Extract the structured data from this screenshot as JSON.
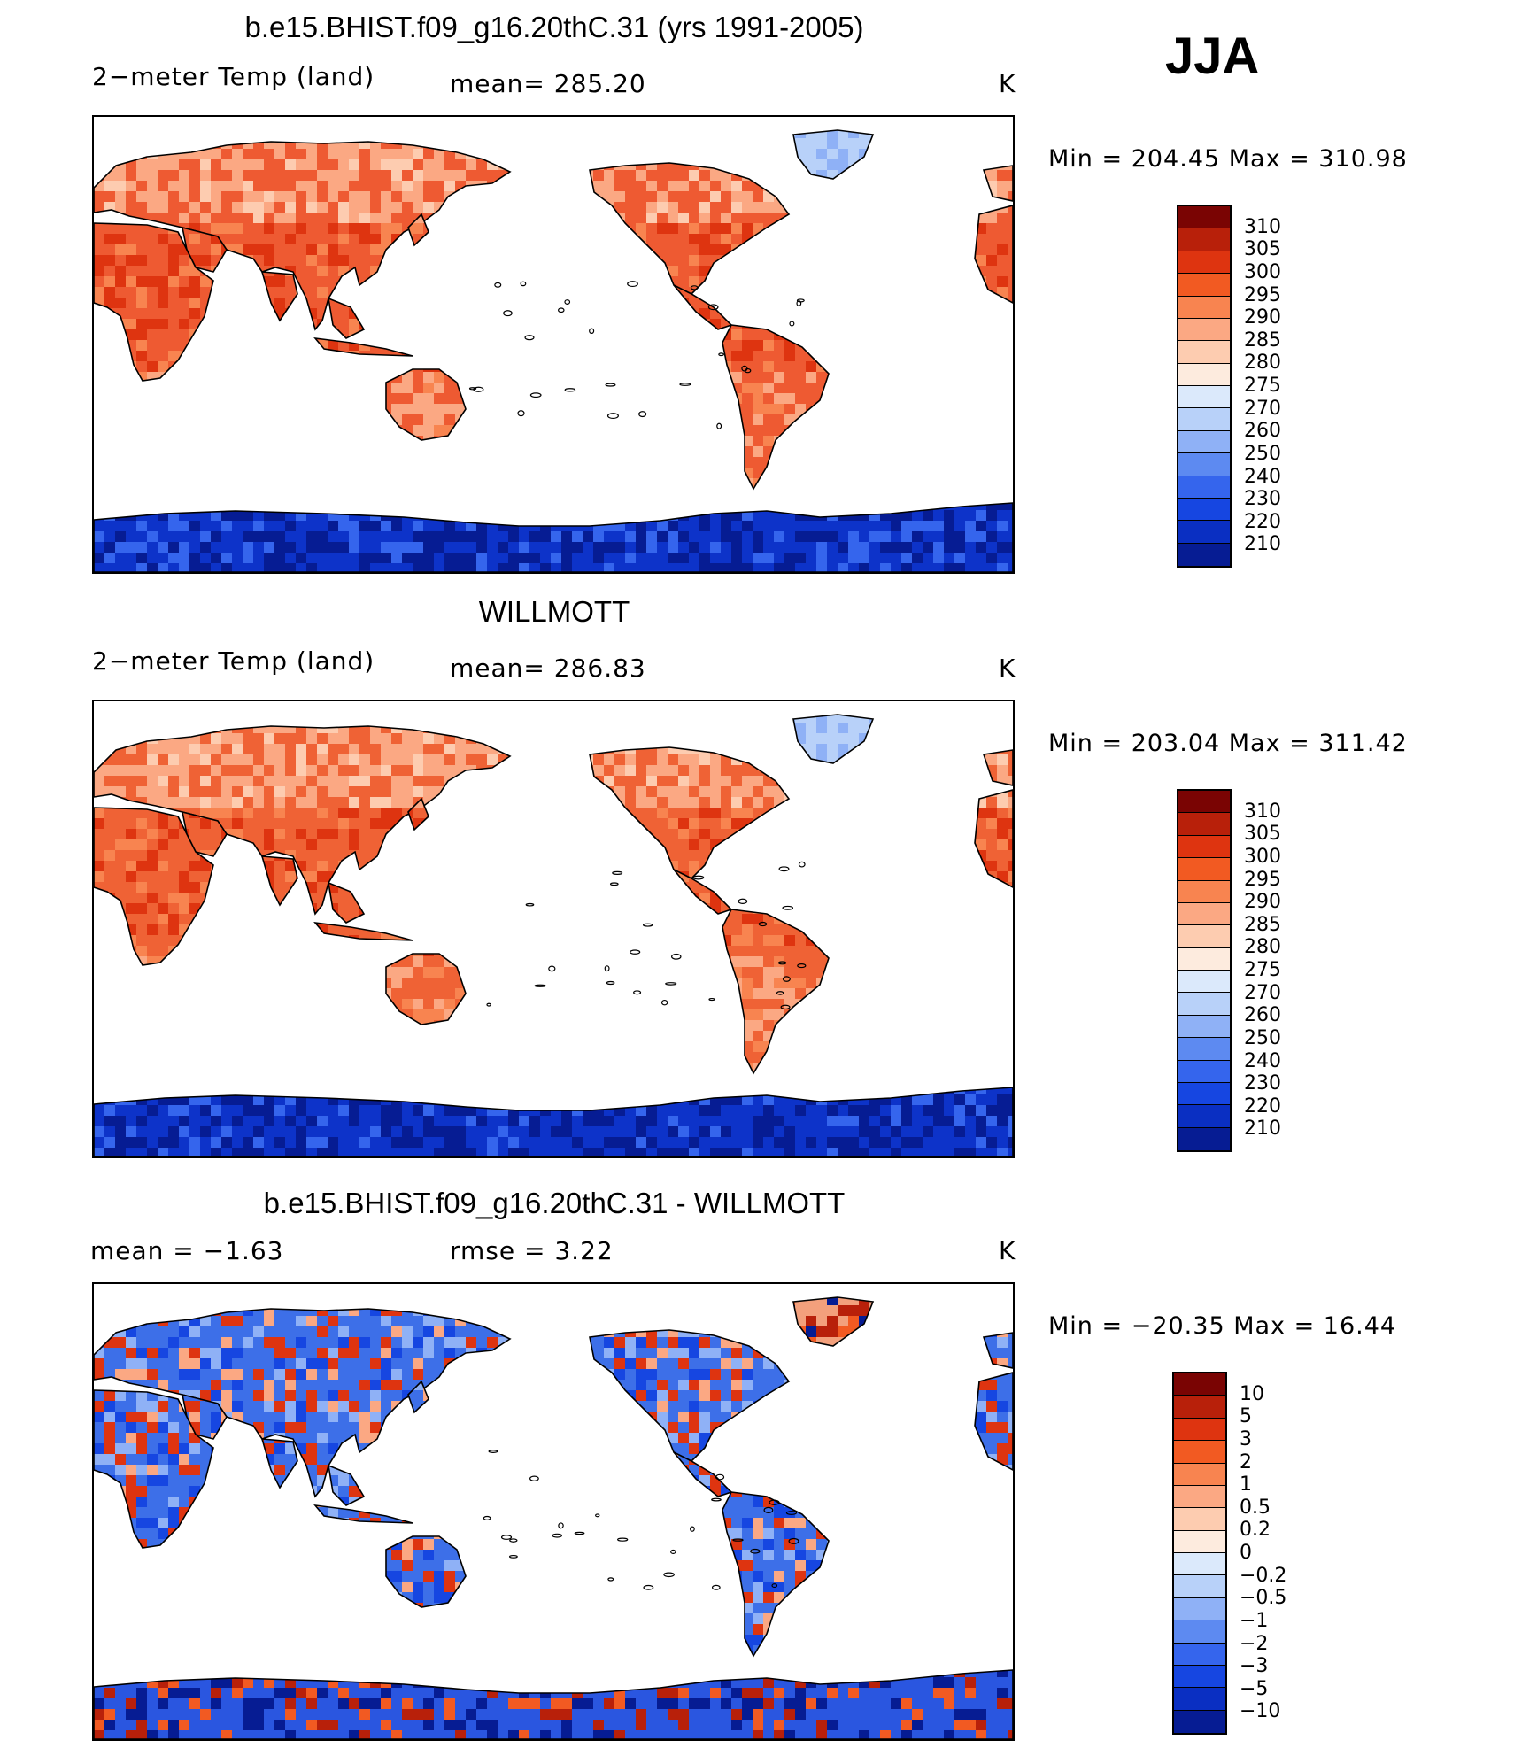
{
  "season": "JJA",
  "panels": [
    {
      "title": "b.e15.BHIST.f09_g16.20thC.31 (yrs 1991-2005)",
      "left_label": "2−meter Temp (land)",
      "center_label": "mean=  285.20",
      "units": "K",
      "minmax": "Min  =  204.45  Max  =  310.98",
      "kind": "abs",
      "bg_color": "#ee5a32"
    },
    {
      "title": "WILLMOTT",
      "left_label": "2−meter Temp (land)",
      "center_label": "mean=  286.83",
      "units": "K",
      "minmax": "Min  =  203.04  Max  =  311.42",
      "kind": "abs",
      "bg_color": "#ef6235"
    },
    {
      "title": "b.e15.BHIST.f09_g16.20thC.31 - WILLMOTT",
      "left_label": "mean  =    −1.63",
      "center_label": "rmse  =      3.22",
      "units": "K",
      "minmax": "Min  =  −20.35  Max  =    16.44",
      "kind": "diff",
      "bg_color": "#3d6fe8"
    }
  ],
  "colorbar_abs": {
    "colors": [
      "#7a0403",
      "#b8200a",
      "#de3410",
      "#f25a22",
      "#f88450",
      "#fba883",
      "#fdccb0",
      "#fdebde",
      "#dbe9fb",
      "#b8d1f9",
      "#8fb1f6",
      "#5d8af1",
      "#3565ed",
      "#1646e1",
      "#0a2fc2",
      "#061c93"
    ],
    "labels": [
      "310",
      "305",
      "300",
      "295",
      "290",
      "285",
      "280",
      "275",
      "270",
      "260",
      "250",
      "240",
      "230",
      "220",
      "210"
    ]
  },
  "colorbar_diff": {
    "colors": [
      "#7a0403",
      "#b8200a",
      "#de3410",
      "#f25a22",
      "#f88450",
      "#fba883",
      "#fdccb0",
      "#fdebde",
      "#dbe9fb",
      "#b8d1f9",
      "#8fb1f6",
      "#5d8af1",
      "#3565ed",
      "#1646e1",
      "#0a2fc2",
      "#061c93"
    ],
    "labels": [
      "10",
      "5",
      "3",
      "2",
      "1",
      "0.5",
      "0.2",
      "0",
      "−0.2",
      "−0.5",
      "−1",
      "−2",
      "−3",
      "−5",
      "−10"
    ]
  },
  "land": {
    "polar_color": "#0d33c9",
    "polar_color_diff": "#2a56e0",
    "greenland_color": "#b8d1f9",
    "greenland_color_diff": "#f3a07c"
  }
}
